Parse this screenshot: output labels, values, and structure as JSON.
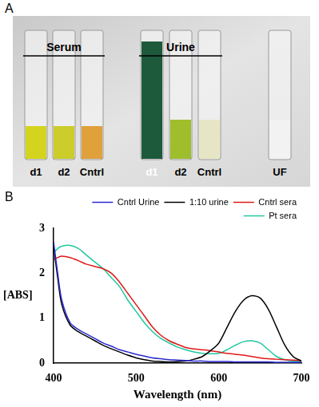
{
  "panel_a": {
    "label": "A",
    "groups": [
      {
        "name": "Serum",
        "tubes": [
          "d1",
          "d2",
          "Cntrl"
        ]
      },
      {
        "name": "Urine",
        "tubes": [
          "d1",
          "d2",
          "Cntrl"
        ]
      }
    ],
    "single": [
      "UF"
    ]
  },
  "panel_b": {
    "label": "B"
  },
  "chart_data": {
    "type": "line",
    "x_label": "Wavelength (nm)",
    "y_label": "[ABS]",
    "x": [
      400,
      405,
      410,
      420,
      430,
      440,
      450,
      460,
      470,
      480,
      490,
      500,
      510,
      520,
      530,
      540,
      550,
      560,
      570,
      580,
      590,
      600,
      610,
      620,
      630,
      640,
      650,
      660,
      670,
      680,
      690,
      700
    ],
    "series": [
      {
        "name": "Cntrl Urine",
        "color": "#2a2ad0",
        "values": [
          2.7,
          2.0,
          1.4,
          0.9,
          0.75,
          0.65,
          0.55,
          0.45,
          0.38,
          0.3,
          0.25,
          0.2,
          0.16,
          0.12,
          0.1,
          0.08,
          0.07,
          0.06,
          0.05,
          0.05,
          0.04,
          0.04,
          0.04,
          0.03,
          0.03,
          0.03,
          0.03,
          0.03,
          0.02,
          0.02,
          0.02,
          0.02
        ]
      },
      {
        "name": "1:10 urine",
        "color": "#000000",
        "values": [
          2.6,
          1.9,
          1.3,
          0.85,
          0.7,
          0.6,
          0.5,
          0.4,
          0.32,
          0.25,
          0.18,
          0.12,
          0.08,
          0.05,
          0.04,
          0.03,
          0.04,
          0.05,
          0.09,
          0.15,
          0.28,
          0.45,
          0.8,
          1.15,
          1.4,
          1.5,
          1.45,
          1.2,
          0.8,
          0.4,
          0.15,
          0.05
        ]
      },
      {
        "name": "Cntrl sera",
        "color": "#e01818",
        "values": [
          2.3,
          2.35,
          2.38,
          2.35,
          2.28,
          2.2,
          2.15,
          2.1,
          2.0,
          1.8,
          1.55,
          1.3,
          1.05,
          0.8,
          0.62,
          0.5,
          0.42,
          0.35,
          0.32,
          0.3,
          0.28,
          0.25,
          0.22,
          0.2,
          0.18,
          0.15,
          0.12,
          0.1,
          0.09,
          0.08,
          0.07,
          0.06
        ]
      },
      {
        "name": "Pt sera",
        "color": "#20c8a0",
        "values": [
          2.45,
          2.55,
          2.6,
          2.62,
          2.55,
          2.4,
          2.25,
          2.1,
          1.9,
          1.7,
          1.4,
          1.15,
          0.9,
          0.7,
          0.55,
          0.45,
          0.36,
          0.3,
          0.25,
          0.22,
          0.21,
          0.22,
          0.3,
          0.4,
          0.48,
          0.5,
          0.45,
          0.3,
          0.15,
          0.08,
          0.05,
          0.04
        ]
      }
    ],
    "xlim": [
      400,
      700
    ],
    "xticks": [
      400,
      500,
      600,
      700
    ],
    "ylim": [
      0,
      3
    ],
    "yticks": [
      0,
      1,
      2,
      3
    ],
    "grid": false,
    "legend": "upper right"
  }
}
